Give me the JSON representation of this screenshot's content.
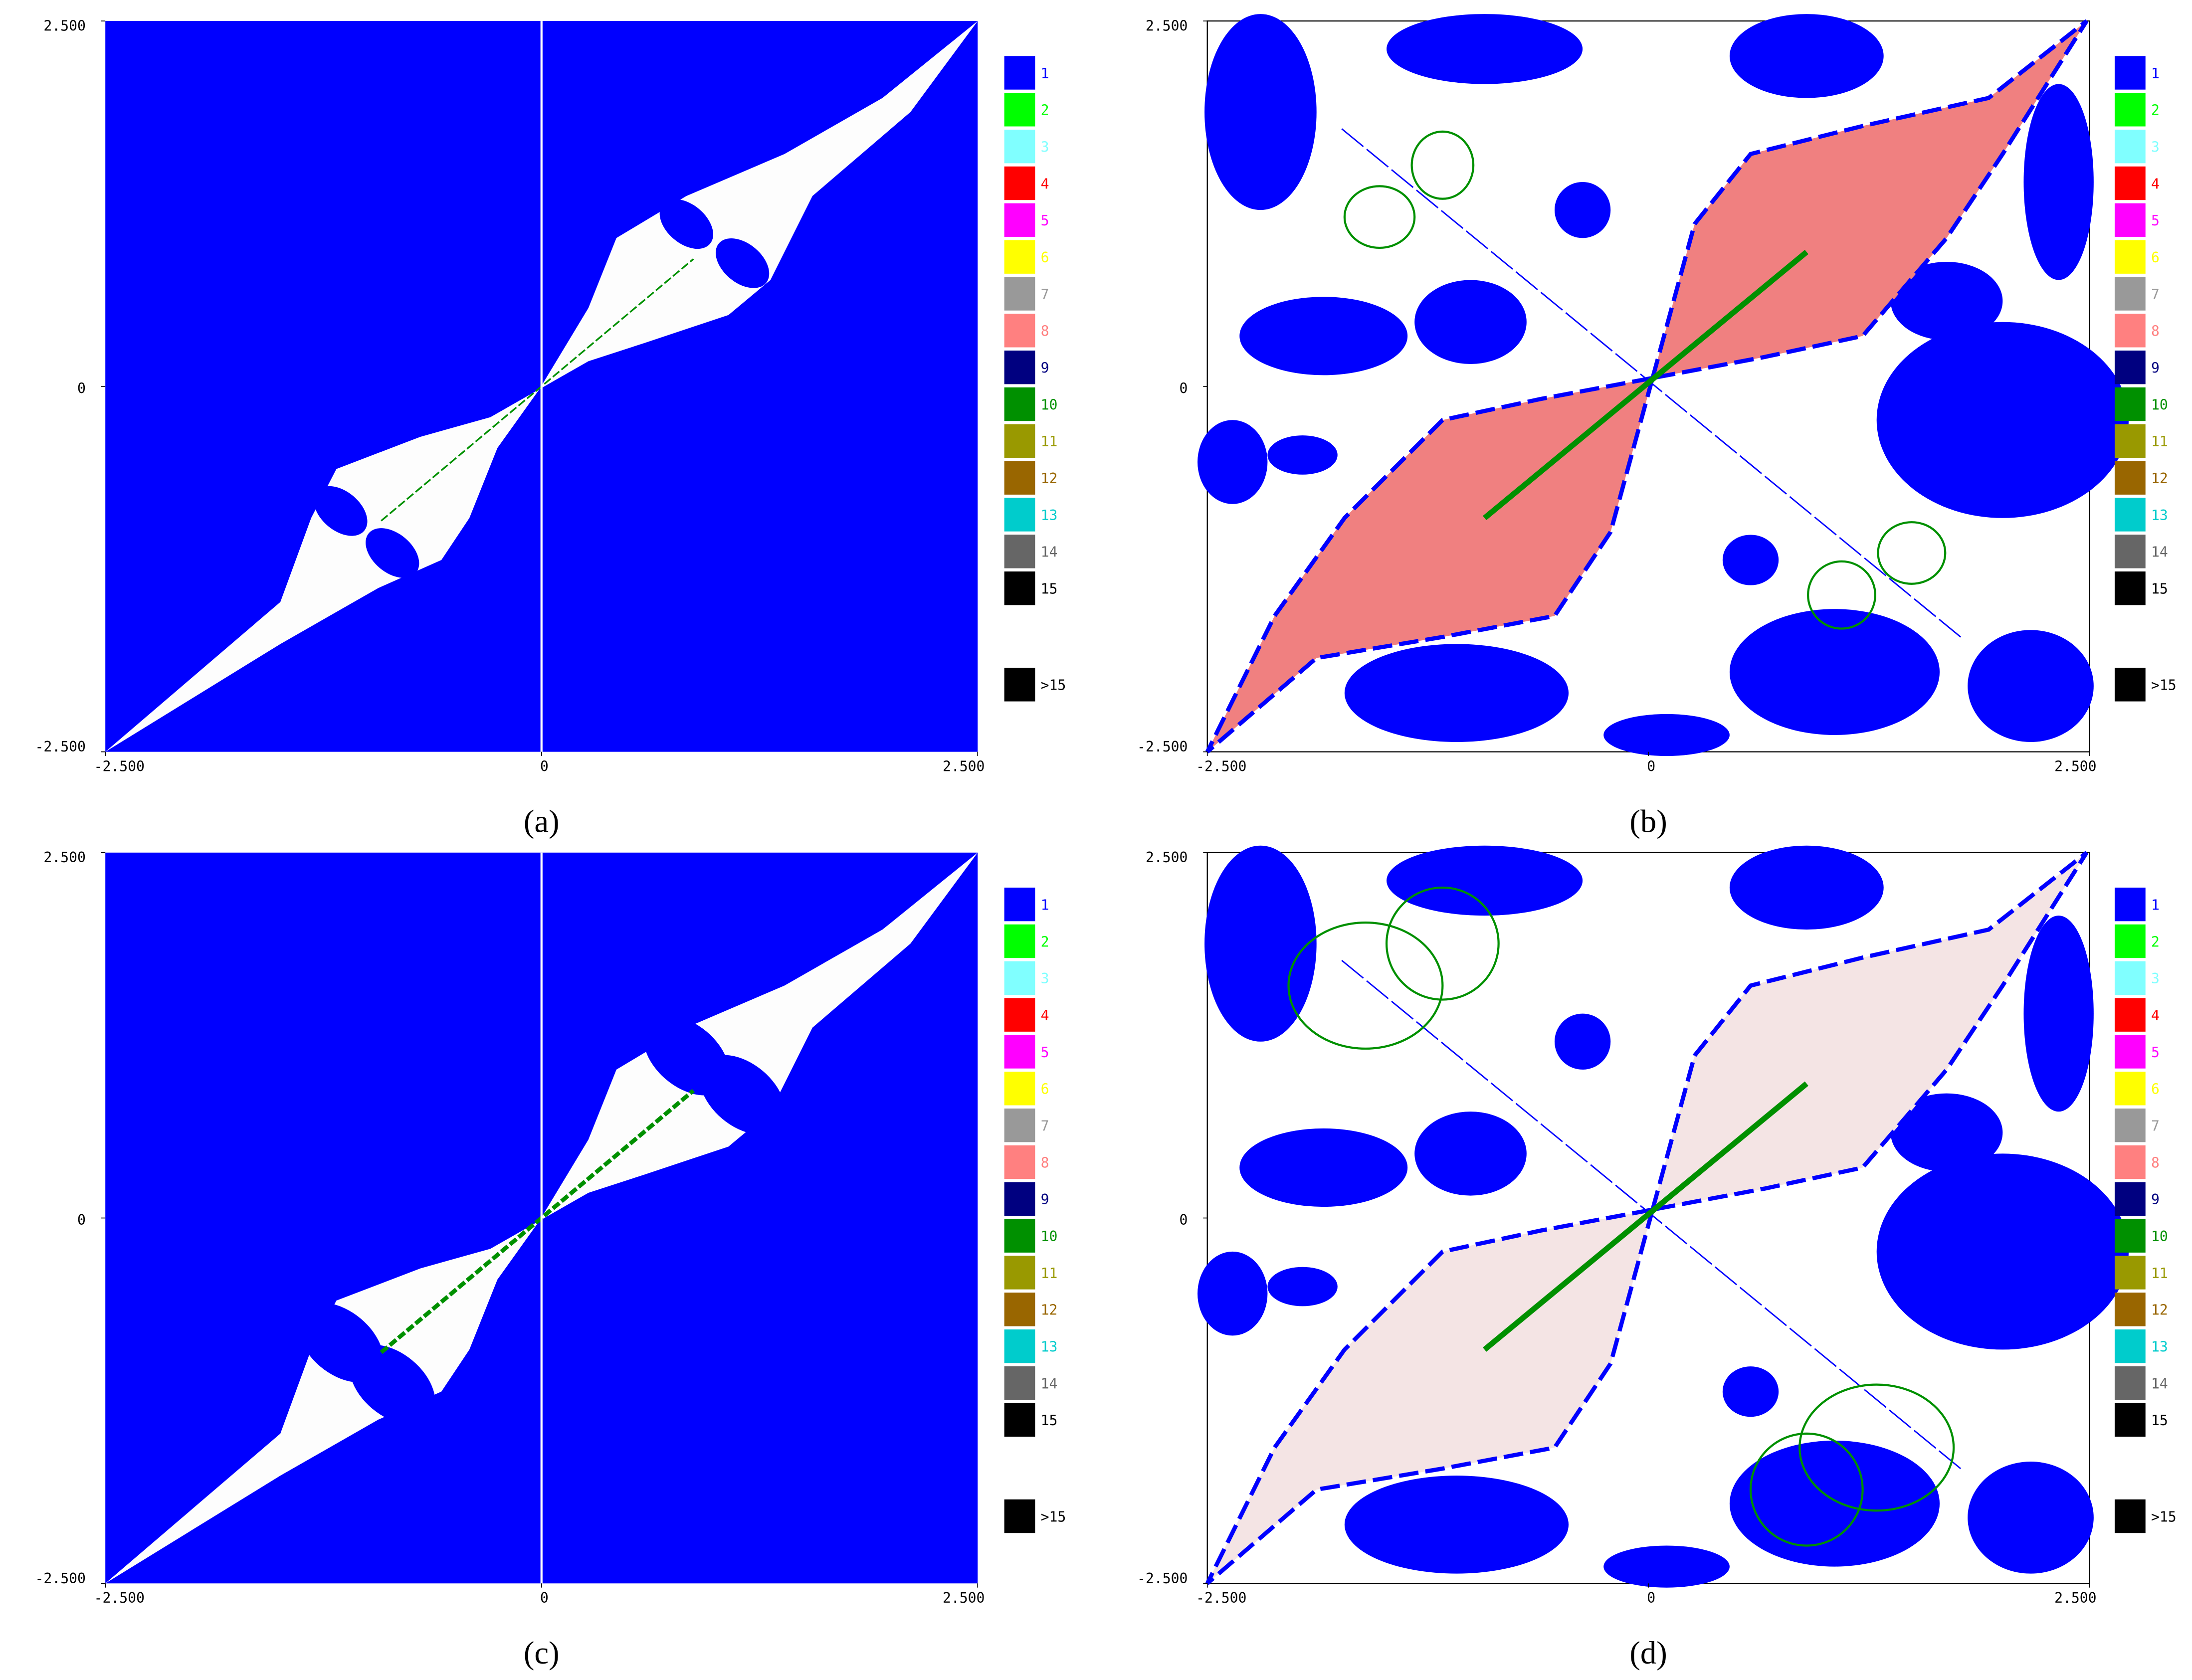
{
  "chart_data": [
    {
      "type": "basin",
      "caption": "(a)",
      "style": "inner",
      "xlim": [
        -2.5,
        2.5
      ],
      "ylim": [
        -2.5,
        2.5
      ],
      "xticks": [
        {
          "value": -2.5,
          "label": "-2.500"
        },
        0,
        {
          "value": 2.5,
          "label": "2.500"
        }
      ],
      "yticks": [
        {
          "value": -2.5,
          "label": "-2.500"
        },
        0,
        {
          "value": 2.5,
          "label": "2.500"
        }
      ],
      "series": [
        {
          "name": "1",
          "color": "#0000ff"
        },
        {
          "name": "2",
          "color": "#00ff00"
        },
        {
          "name": "3",
          "color": "#80ffff"
        },
        {
          "name": "4",
          "color": "#ff0000"
        },
        {
          "name": "5",
          "color": "#ff00ff"
        },
        {
          "name": "6",
          "color": "#ffff00"
        },
        {
          "name": "7",
          "color": "#999999"
        },
        {
          "name": "8",
          "color": "#ff8080"
        },
        {
          "name": "9",
          "color": "#000080"
        },
        {
          "name": "10",
          "color": "#009000"
        },
        {
          "name": "11",
          "color": "#999900"
        },
        {
          "name": "12",
          "color": "#996600"
        },
        {
          "name": "13",
          "color": "#00cccc"
        },
        {
          "name": "14",
          "color": "#666666"
        },
        {
          "name": "15",
          "color": "#000000"
        },
        {
          "name": ">15",
          "color": "#000000"
        }
      ]
    },
    {
      "type": "basin",
      "caption": "(b)",
      "style": "outer",
      "xlim": [
        -2.5,
        2.5
      ],
      "ylim": [
        -2.5,
        2.5
      ],
      "xticks": [
        {
          "value": -2.5,
          "label": "-2.500"
        },
        0,
        {
          "value": 2.5,
          "label": "2.500"
        }
      ],
      "yticks": [
        {
          "value": -2.5,
          "label": "-2.500"
        },
        0,
        {
          "value": 2.5,
          "label": "2.500"
        }
      ],
      "series": [
        {
          "name": "1",
          "color": "#0000ff"
        },
        {
          "name": "2",
          "color": "#00ff00"
        },
        {
          "name": "3",
          "color": "#80ffff"
        },
        {
          "name": "4",
          "color": "#ff0000"
        },
        {
          "name": "5",
          "color": "#ff00ff"
        },
        {
          "name": "6",
          "color": "#ffff00"
        },
        {
          "name": "7",
          "color": "#999999"
        },
        {
          "name": "8",
          "color": "#ff8080"
        },
        {
          "name": "9",
          "color": "#000080"
        },
        {
          "name": "10",
          "color": "#009000"
        },
        {
          "name": "11",
          "color": "#999900"
        },
        {
          "name": "12",
          "color": "#996600"
        },
        {
          "name": "13",
          "color": "#00cccc"
        },
        {
          "name": "14",
          "color": "#666666"
        },
        {
          "name": "15",
          "color": "#000000"
        },
        {
          "name": ">15",
          "color": "#000000"
        }
      ]
    },
    {
      "type": "basin",
      "caption": "(c)",
      "style": "inner",
      "xlim": [
        -2.5,
        2.5
      ],
      "ylim": [
        -2.5,
        2.5
      ],
      "xticks": [
        {
          "value": -2.5,
          "label": "-2.500"
        },
        0,
        {
          "value": 2.5,
          "label": "2.500"
        }
      ],
      "yticks": [
        {
          "value": -2.5,
          "label": "-2.500"
        },
        0,
        {
          "value": 2.5,
          "label": "2.500"
        }
      ],
      "series": [
        {
          "name": "1",
          "color": "#0000ff"
        },
        {
          "name": "2",
          "color": "#00ff00"
        },
        {
          "name": "3",
          "color": "#80ffff"
        },
        {
          "name": "4",
          "color": "#ff0000"
        },
        {
          "name": "5",
          "color": "#ff00ff"
        },
        {
          "name": "6",
          "color": "#ffff00"
        },
        {
          "name": "7",
          "color": "#999999"
        },
        {
          "name": "8",
          "color": "#ff8080"
        },
        {
          "name": "9",
          "color": "#000080"
        },
        {
          "name": "10",
          "color": "#009000"
        },
        {
          "name": "11",
          "color": "#999900"
        },
        {
          "name": "12",
          "color": "#996600"
        },
        {
          "name": "13",
          "color": "#00cccc"
        },
        {
          "name": "14",
          "color": "#666666"
        },
        {
          "name": "15",
          "color": "#000000"
        },
        {
          "name": ">15",
          "color": "#000000"
        }
      ]
    },
    {
      "type": "basin",
      "caption": "(d)",
      "style": "outer",
      "xlim": [
        -2.5,
        2.5
      ],
      "ylim": [
        -2.5,
        2.5
      ],
      "xticks": [
        {
          "value": -2.5,
          "label": "-2.500"
        },
        0,
        {
          "value": 2.5,
          "label": "2.500"
        }
      ],
      "yticks": [
        {
          "value": -2.5,
          "label": "-2.500"
        },
        0,
        {
          "value": 2.5,
          "label": "2.500"
        }
      ],
      "series": [
        {
          "name": "1",
          "color": "#0000ff"
        },
        {
          "name": "2",
          "color": "#00ff00"
        },
        {
          "name": "3",
          "color": "#80ffff"
        },
        {
          "name": "4",
          "color": "#ff0000"
        },
        {
          "name": "5",
          "color": "#ff00ff"
        },
        {
          "name": "6",
          "color": "#ffff00"
        },
        {
          "name": "7",
          "color": "#999999"
        },
        {
          "name": "8",
          "color": "#ff8080"
        },
        {
          "name": "9",
          "color": "#000080"
        },
        {
          "name": "10",
          "color": "#009000"
        },
        {
          "name": "11",
          "color": "#999900"
        },
        {
          "name": "12",
          "color": "#996600"
        },
        {
          "name": "13",
          "color": "#00cccc"
        },
        {
          "name": "14",
          "color": "#666666"
        },
        {
          "name": "15",
          "color": "#000000"
        },
        {
          "name": ">15",
          "color": "#000000"
        }
      ]
    }
  ]
}
